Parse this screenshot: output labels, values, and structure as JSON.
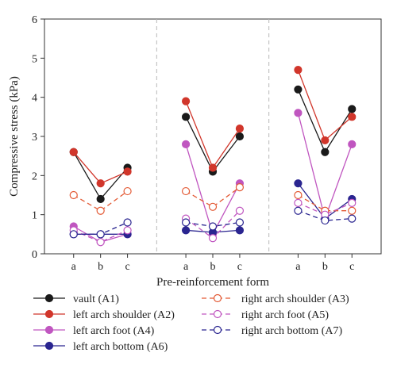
{
  "chart_data": {
    "type": "line",
    "xlabel": "Pre-reinforcement form",
    "ylabel": "Compressive stress (kPa)",
    "ylim": [
      0,
      6
    ],
    "yticks": [
      0,
      1,
      2,
      3,
      4,
      5,
      6
    ],
    "groups": [
      {
        "categories": [
          "a",
          "b",
          "c"
        ]
      },
      {
        "categories": [
          "a",
          "b",
          "c"
        ]
      },
      {
        "categories": [
          "a",
          "b",
          "c"
        ]
      }
    ],
    "grid": false,
    "group_separators": "dashed",
    "legend": "bottom",
    "series": [
      {
        "name": "vault (A1)",
        "color": "#1a1a1a",
        "line": "solid",
        "marker": "filled",
        "values": [
          [
            2.6,
            1.4,
            2.2
          ],
          [
            3.5,
            2.1,
            3.0
          ],
          [
            4.2,
            2.6,
            3.7
          ]
        ]
      },
      {
        "name": "left arch shoulder (A2)",
        "color": "#d1362b",
        "line": "solid",
        "marker": "filled",
        "values": [
          [
            2.6,
            1.8,
            2.1
          ],
          [
            3.9,
            2.2,
            3.2
          ],
          [
            4.7,
            2.9,
            3.5
          ]
        ]
      },
      {
        "name": "left arch foot (A4)",
        "color": "#c056c0",
        "line": "solid",
        "marker": "filled",
        "values": [
          [
            0.7,
            0.3,
            0.5
          ],
          [
            2.8,
            0.5,
            1.8
          ],
          [
            3.6,
            0.9,
            2.8
          ]
        ]
      },
      {
        "name": "left arch bottom (A6)",
        "color": "#2a2590",
        "line": "solid",
        "marker": "filled",
        "values": [
          [
            0.5,
            0.5,
            0.5
          ],
          [
            0.6,
            0.55,
            0.6
          ],
          [
            1.8,
            0.9,
            1.4
          ]
        ]
      },
      {
        "name": "right arch shoulder (A3)",
        "color": "#e35a35",
        "line": "dashed",
        "marker": "open",
        "values": [
          [
            1.5,
            1.1,
            1.6
          ],
          [
            1.6,
            1.2,
            1.7
          ],
          [
            1.5,
            1.1,
            1.1
          ]
        ]
      },
      {
        "name": "right arch foot (A5)",
        "color": "#c056c0",
        "line": "dashed",
        "marker": "open",
        "values": [
          [
            0.6,
            0.3,
            0.6
          ],
          [
            0.9,
            0.4,
            1.1
          ],
          [
            1.3,
            1.0,
            1.3
          ]
        ]
      },
      {
        "name": "right arch bottom (A7)",
        "color": "#2a2590",
        "line": "dashed",
        "marker": "open",
        "values": [
          [
            0.5,
            0.5,
            0.8
          ],
          [
            0.8,
            0.7,
            0.8
          ],
          [
            1.1,
            0.85,
            0.9
          ]
        ]
      }
    ]
  }
}
